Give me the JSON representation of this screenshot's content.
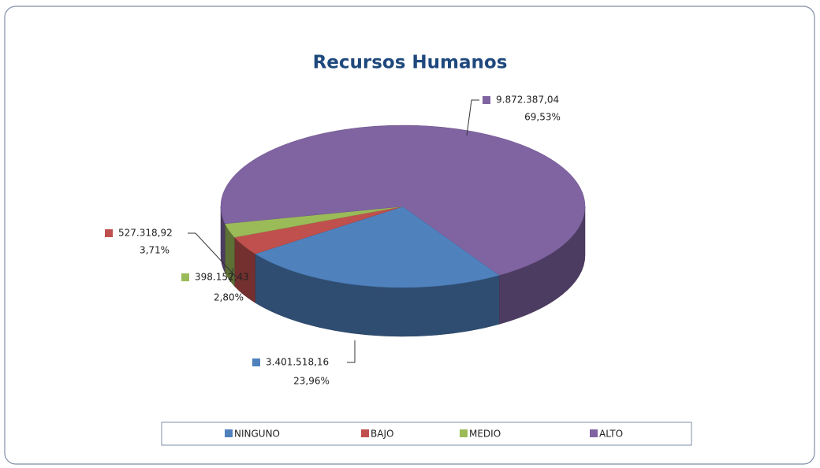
{
  "chart_data": {
    "type": "pie3d",
    "title": "Recursos Humanos",
    "categories": [
      "NINGUNO",
      "BAJO",
      "MEDIO",
      "ALTO"
    ],
    "values": [
      3401518.16,
      527318.92,
      398152.43,
      9872387.04
    ],
    "value_labels": [
      "3.401.518,16",
      "527.318,92",
      "398.152,43",
      "9.872.387,04"
    ],
    "percents": [
      23.96,
      3.71,
      2.8,
      69.53
    ],
    "percent_labels": [
      "23,96%",
      "3,71%",
      "2,80%",
      "69,53%"
    ],
    "colors": [
      "#4f81bd",
      "#c0504d",
      "#9bbb59",
      "#8064a2"
    ],
    "legend": "bottom"
  }
}
